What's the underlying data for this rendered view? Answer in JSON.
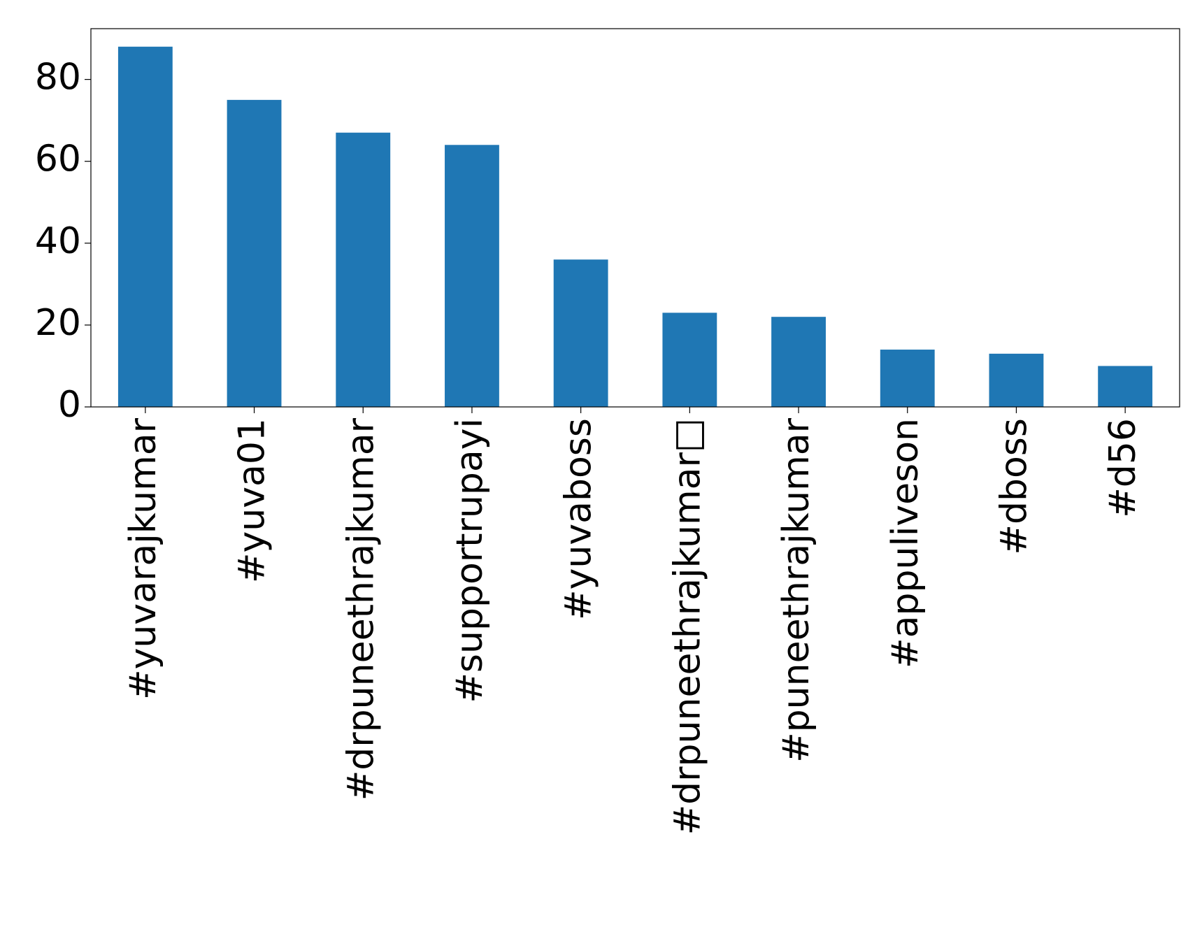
{
  "chart_data": {
    "type": "bar",
    "categories": [
      "#yuvarajkumar",
      "#yuva01",
      "#drpuneethrajkumar",
      "#supportrupayi",
      "#yuvaboss",
      "#drpuneethrajkumar□",
      "#puneethrajkumar",
      "#appuliveson",
      "#dboss",
      "#d56"
    ],
    "values": [
      88,
      75,
      67,
      64,
      36,
      23,
      22,
      14,
      13,
      10
    ],
    "color": "#1f77b4",
    "ylim": [
      0,
      92.4
    ],
    "yticks": [
      0,
      20,
      40,
      60,
      80
    ],
    "grid": false
  }
}
